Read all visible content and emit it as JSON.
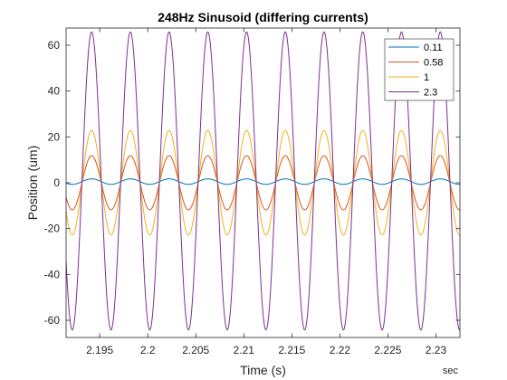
{
  "chart_data": {
    "type": "line",
    "title": "248Hz Sinusoid (differing currents)",
    "xlabel": "Time (s)",
    "ylabel": "Position (um)",
    "x_unit_label": "sec",
    "xlim": [
      2.1915,
      2.2325
    ],
    "ylim": [
      -67.5,
      67.5
    ],
    "x_ticks": [
      2.195,
      2.2,
      2.205,
      2.21,
      2.215,
      2.22,
      2.225,
      2.23
    ],
    "x_tick_labels": [
      "2.195",
      "2.2",
      "2.205",
      "2.21",
      "2.215",
      "2.22",
      "2.225",
      "2.23"
    ],
    "y_ticks": [
      -60,
      -40,
      -20,
      0,
      20,
      40,
      60
    ],
    "y_tick_labels": [
      "-60",
      "-40",
      "-20",
      "0",
      "20",
      "40",
      "60"
    ],
    "grid": false,
    "legend_position": "top-right",
    "signal": {
      "frequency_hz": 248,
      "first_peak_time": 2.19416
    },
    "series": [
      {
        "name": "0.11",
        "color": "#0072BD",
        "amplitude": 1.2,
        "offset": 0.5
      },
      {
        "name": "0.58",
        "color": "#D95319",
        "amplitude": 11.8,
        "offset": 0
      },
      {
        "name": "1",
        "color": "#EDB120",
        "amplitude": 22.8,
        "offset": 0
      },
      {
        "name": "2.3",
        "color": "#7E2F8E",
        "amplitude": 65,
        "offset": 0.8
      }
    ]
  }
}
